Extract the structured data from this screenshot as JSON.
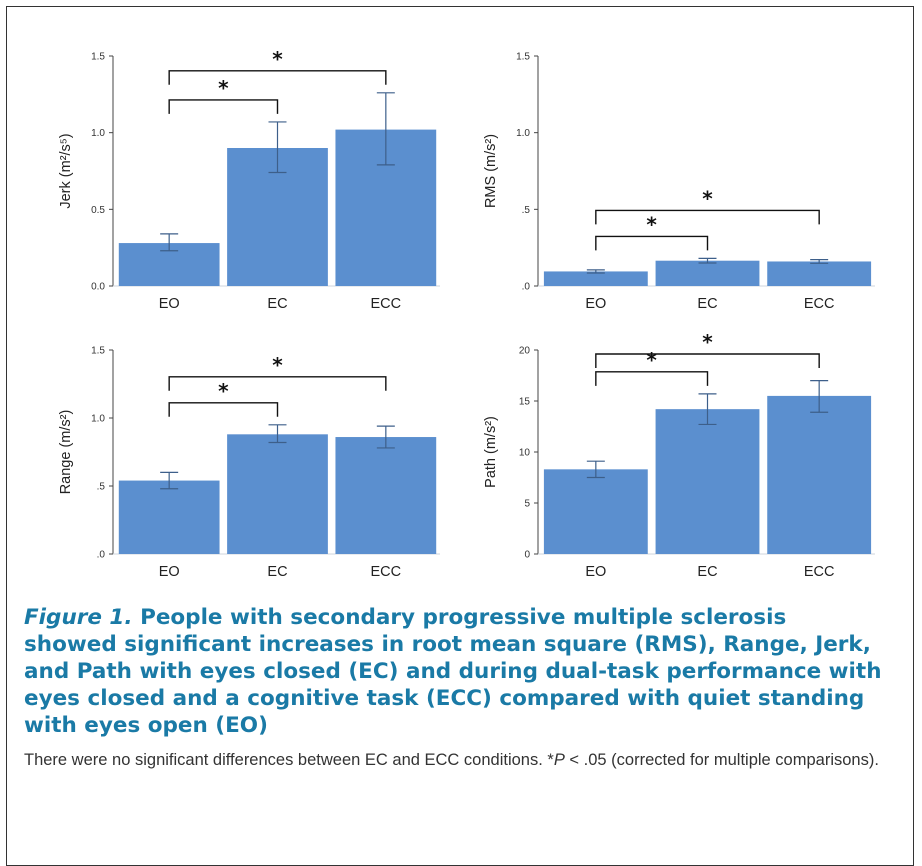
{
  "colors": {
    "bar": "#5b8fcf",
    "errorbar": "#3d5f8a",
    "axis": "#444444",
    "bracket": "#111111",
    "caption_title": "#1a7aa6"
  },
  "chart_data": [
    {
      "type": "bar",
      "id": "jerk",
      "categories": [
        "EO",
        "EC",
        "ECC"
      ],
      "values": [
        0.28,
        0.9,
        1.02
      ],
      "error_low": [
        0.23,
        0.74,
        0.79
      ],
      "error_high": [
        0.34,
        1.07,
        1.26
      ],
      "ylabel": "Jerk (m²/s⁵)",
      "ylim": [
        0,
        1.5
      ],
      "yticks": [
        0,
        0.5,
        1.0,
        1.5
      ],
      "ytick_labels": [
        "0.0",
        "0.5",
        "1.0",
        "1.5"
      ],
      "significance": [
        {
          "from": "EO",
          "to": "EC",
          "label": "*"
        },
        {
          "from": "EO",
          "to": "ECC",
          "label": "*"
        }
      ]
    },
    {
      "type": "bar",
      "id": "rms",
      "categories": [
        "EO",
        "EC",
        "ECC"
      ],
      "values": [
        0.095,
        0.165,
        0.16
      ],
      "error_low": [
        0.085,
        0.15,
        0.148
      ],
      "error_high": [
        0.105,
        0.18,
        0.172
      ],
      "ylabel": "RMS (m/s²)",
      "ylim": [
        0,
        1.5
      ],
      "yticks": [
        0,
        0.5,
        1.0,
        1.5
      ],
      "ytick_labels": [
        ".0",
        ".5",
        "1.0",
        "1.5"
      ],
      "significance": [
        {
          "from": "EO",
          "to": "EC",
          "label": "*"
        },
        {
          "from": "EO",
          "to": "ECC",
          "label": "*"
        }
      ]
    },
    {
      "type": "bar",
      "id": "range",
      "categories": [
        "EO",
        "EC",
        "ECC"
      ],
      "values": [
        0.54,
        0.88,
        0.86
      ],
      "error_low": [
        0.48,
        0.82,
        0.78
      ],
      "error_high": [
        0.6,
        0.95,
        0.94
      ],
      "ylabel": "Range (m/s²)",
      "ylim": [
        0,
        1.5
      ],
      "yticks": [
        0,
        0.5,
        1.0,
        1.5
      ],
      "ytick_labels": [
        ".0",
        ".5",
        "1.0",
        "1.5"
      ],
      "significance": [
        {
          "from": "EO",
          "to": "EC",
          "label": "*"
        },
        {
          "from": "EO",
          "to": "ECC",
          "label": "*"
        }
      ]
    },
    {
      "type": "bar",
      "id": "path",
      "categories": [
        "EO",
        "EC",
        "ECC"
      ],
      "values": [
        8.3,
        14.2,
        15.5
      ],
      "error_low": [
        7.5,
        12.7,
        13.9
      ],
      "error_high": [
        9.1,
        15.7,
        17.0
      ],
      "ylabel": "Path (m/s²)",
      "ylim": [
        0,
        20
      ],
      "yticks": [
        0,
        5,
        10,
        15,
        20
      ],
      "ytick_labels": [
        "0",
        "5",
        "10",
        "15",
        "20"
      ],
      "significance": [
        {
          "from": "EO",
          "to": "EC",
          "label": "*"
        },
        {
          "from": "EO",
          "to": "ECC",
          "label": "*"
        }
      ]
    }
  ],
  "caption": {
    "figure_label": "Figure 1.",
    "title": "People with secondary progressive multiple sclerosis showed significant increases in root mean square (RMS), Range, Jerk, and Path with eyes closed (EC) and during dual-task performance with eyes closed and a cognitive task (ECC) compared with quiet standing with eyes open (EO)",
    "note_main": "There were no significant differences between EC and ECC conditions. *",
    "note_p": "P",
    "note_rest": " < .05 (corrected for multiple comparisons)."
  }
}
